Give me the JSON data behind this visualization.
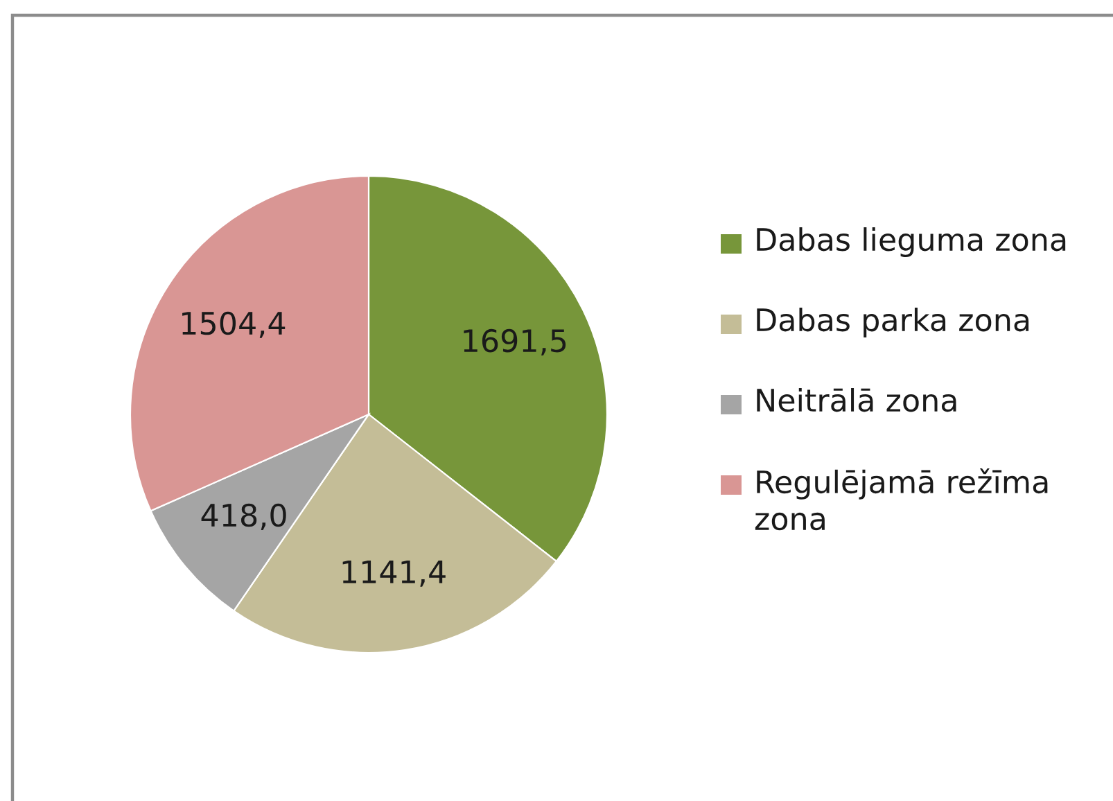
{
  "chart_data": {
    "type": "pie",
    "categories": [
      "Dabas lieguma zona",
      "Dabas parka zona",
      "Neitrālā zona",
      "Regulējamā režīma zona"
    ],
    "values": [
      1691.5,
      1141.4,
      418.0,
      1504.4
    ],
    "value_labels": [
      "1691,5",
      "1141,4",
      "418,0",
      "1504,4"
    ],
    "colors": [
      "#77963a",
      "#c4bd97",
      "#a5a5a5",
      "#d99694"
    ],
    "legend": "right"
  }
}
